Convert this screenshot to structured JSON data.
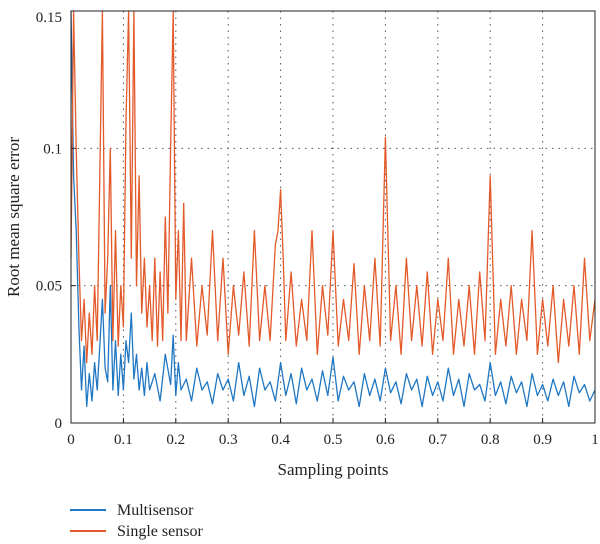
{
  "chart_data": {
    "type": "line",
    "title": "",
    "xlabel": "Sampling points",
    "ylabel": "Root mean square error",
    "xlim": [
      0,
      1
    ],
    "ylim": [
      0,
      0.15
    ],
    "x_ticks": [
      0,
      0.1,
      0.2,
      0.3,
      0.4,
      0.5,
      0.6,
      0.7,
      0.8,
      0.9,
      1
    ],
    "x_tick_labels": [
      "0",
      "0.1",
      "0.2",
      "0.3",
      "0.4",
      "0.5",
      "0.6",
      "0.7",
      "0.8",
      "0.9",
      "1"
    ],
    "y_ticks": [
      0,
      0.05,
      0.1,
      0.15
    ],
    "y_tick_labels": [
      "0",
      "0.05",
      "0.1",
      "0.15"
    ],
    "grid": true,
    "legend_position": "bottom-left",
    "series": [
      {
        "name": "Multisensor",
        "color": "#1f77c4",
        "x": [
          0,
          0.005,
          0.01,
          0.015,
          0.02,
          0.025,
          0.03,
          0.035,
          0.04,
          0.045,
          0.05,
          0.055,
          0.06,
          0.065,
          0.07,
          0.075,
          0.08,
          0.085,
          0.09,
          0.095,
          0.1,
          0.105,
          0.11,
          0.115,
          0.12,
          0.125,
          0.13,
          0.135,
          0.14,
          0.145,
          0.15,
          0.16,
          0.17,
          0.18,
          0.19,
          0.195,
          0.2,
          0.205,
          0.21,
          0.22,
          0.23,
          0.24,
          0.25,
          0.26,
          0.27,
          0.28,
          0.29,
          0.3,
          0.31,
          0.32,
          0.33,
          0.34,
          0.35,
          0.36,
          0.37,
          0.38,
          0.39,
          0.4,
          0.41,
          0.42,
          0.43,
          0.44,
          0.45,
          0.46,
          0.47,
          0.48,
          0.49,
          0.5,
          0.51,
          0.52,
          0.53,
          0.54,
          0.55,
          0.56,
          0.57,
          0.58,
          0.59,
          0.6,
          0.61,
          0.62,
          0.63,
          0.64,
          0.65,
          0.66,
          0.67,
          0.68,
          0.69,
          0.7,
          0.71,
          0.72,
          0.73,
          0.74,
          0.75,
          0.76,
          0.77,
          0.78,
          0.79,
          0.8,
          0.81,
          0.82,
          0.83,
          0.84,
          0.85,
          0.86,
          0.87,
          0.88,
          0.89,
          0.9,
          0.91,
          0.92,
          0.93,
          0.94,
          0.95,
          0.96,
          0.97,
          0.98,
          0.99,
          1
        ],
        "values": [
          0.15,
          0.09,
          0.07,
          0.035,
          0.012,
          0.028,
          0.006,
          0.018,
          0.008,
          0.022,
          0.012,
          0.028,
          0.045,
          0.02,
          0.015,
          0.05,
          0.012,
          0.03,
          0.01,
          0.025,
          0.012,
          0.03,
          0.022,
          0.04,
          0.016,
          0.025,
          0.012,
          0.02,
          0.01,
          0.022,
          0.012,
          0.018,
          0.008,
          0.025,
          0.014,
          0.032,
          0.01,
          0.022,
          0.012,
          0.016,
          0.008,
          0.02,
          0.012,
          0.015,
          0.007,
          0.018,
          0.012,
          0.016,
          0.008,
          0.022,
          0.01,
          0.017,
          0.006,
          0.02,
          0.012,
          0.015,
          0.008,
          0.022,
          0.01,
          0.018,
          0.007,
          0.02,
          0.012,
          0.016,
          0.008,
          0.019,
          0.01,
          0.024,
          0.008,
          0.017,
          0.012,
          0.015,
          0.006,
          0.018,
          0.01,
          0.016,
          0.008,
          0.02,
          0.011,
          0.015,
          0.007,
          0.018,
          0.012,
          0.016,
          0.006,
          0.017,
          0.01,
          0.015,
          0.008,
          0.02,
          0.01,
          0.016,
          0.006,
          0.018,
          0.012,
          0.014,
          0.008,
          0.022,
          0.01,
          0.015,
          0.007,
          0.017,
          0.011,
          0.015,
          0.006,
          0.018,
          0.01,
          0.014,
          0.008,
          0.016,
          0.01,
          0.015,
          0.006,
          0.017,
          0.011,
          0.014,
          0.008,
          0.012
        ]
      },
      {
        "name": "Single sensor",
        "color": "#e35a2a",
        "x": [
          0,
          0.005,
          0.01,
          0.015,
          0.02,
          0.025,
          0.03,
          0.035,
          0.04,
          0.045,
          0.05,
          0.055,
          0.06,
          0.065,
          0.07,
          0.075,
          0.08,
          0.085,
          0.09,
          0.095,
          0.1,
          0.105,
          0.11,
          0.115,
          0.12,
          0.125,
          0.13,
          0.135,
          0.14,
          0.145,
          0.15,
          0.155,
          0.16,
          0.165,
          0.17,
          0.175,
          0.18,
          0.185,
          0.19,
          0.195,
          0.2,
          0.205,
          0.21,
          0.215,
          0.22,
          0.23,
          0.24,
          0.25,
          0.26,
          0.27,
          0.28,
          0.29,
          0.3,
          0.31,
          0.32,
          0.33,
          0.34,
          0.35,
          0.36,
          0.37,
          0.38,
          0.39,
          0.395,
          0.4,
          0.405,
          0.41,
          0.42,
          0.43,
          0.44,
          0.45,
          0.46,
          0.47,
          0.48,
          0.49,
          0.5,
          0.51,
          0.52,
          0.53,
          0.54,
          0.55,
          0.56,
          0.57,
          0.58,
          0.59,
          0.6,
          0.61,
          0.62,
          0.63,
          0.64,
          0.65,
          0.66,
          0.67,
          0.68,
          0.69,
          0.7,
          0.71,
          0.72,
          0.73,
          0.74,
          0.75,
          0.76,
          0.77,
          0.78,
          0.79,
          0.8,
          0.81,
          0.82,
          0.83,
          0.84,
          0.85,
          0.86,
          0.87,
          0.88,
          0.89,
          0.9,
          0.91,
          0.92,
          0.93,
          0.94,
          0.95,
          0.96,
          0.97,
          0.98,
          0.99,
          1
        ],
        "values": [
          0.06,
          0.15,
          0.1,
          0.06,
          0.03,
          0.045,
          0.022,
          0.04,
          0.025,
          0.05,
          0.03,
          0.09,
          0.15,
          0.04,
          0.06,
          0.1,
          0.03,
          0.07,
          0.028,
          0.05,
          0.035,
          0.11,
          0.15,
          0.06,
          0.15,
          0.05,
          0.09,
          0.04,
          0.06,
          0.035,
          0.05,
          0.03,
          0.06,
          0.028,
          0.055,
          0.03,
          0.075,
          0.04,
          0.1,
          0.15,
          0.045,
          0.07,
          0.03,
          0.08,
          0.03,
          0.06,
          0.028,
          0.05,
          0.032,
          0.07,
          0.03,
          0.06,
          0.025,
          0.05,
          0.032,
          0.055,
          0.028,
          0.07,
          0.03,
          0.05,
          0.03,
          0.065,
          0.07,
          0.085,
          0.06,
          0.03,
          0.055,
          0.028,
          0.045,
          0.03,
          0.07,
          0.025,
          0.05,
          0.032,
          0.07,
          0.028,
          0.045,
          0.03,
          0.058,
          0.025,
          0.05,
          0.03,
          0.06,
          0.028,
          0.104,
          0.03,
          0.05,
          0.025,
          0.06,
          0.03,
          0.05,
          0.028,
          0.055,
          0.025,
          0.045,
          0.03,
          0.06,
          0.025,
          0.045,
          0.028,
          0.05,
          0.025,
          0.055,
          0.03,
          0.09,
          0.025,
          0.045,
          0.028,
          0.05,
          0.025,
          0.045,
          0.03,
          0.07,
          0.025,
          0.045,
          0.028,
          0.05,
          0.022,
          0.045,
          0.028,
          0.05,
          0.025,
          0.06,
          0.03,
          0.045
        ]
      }
    ]
  }
}
